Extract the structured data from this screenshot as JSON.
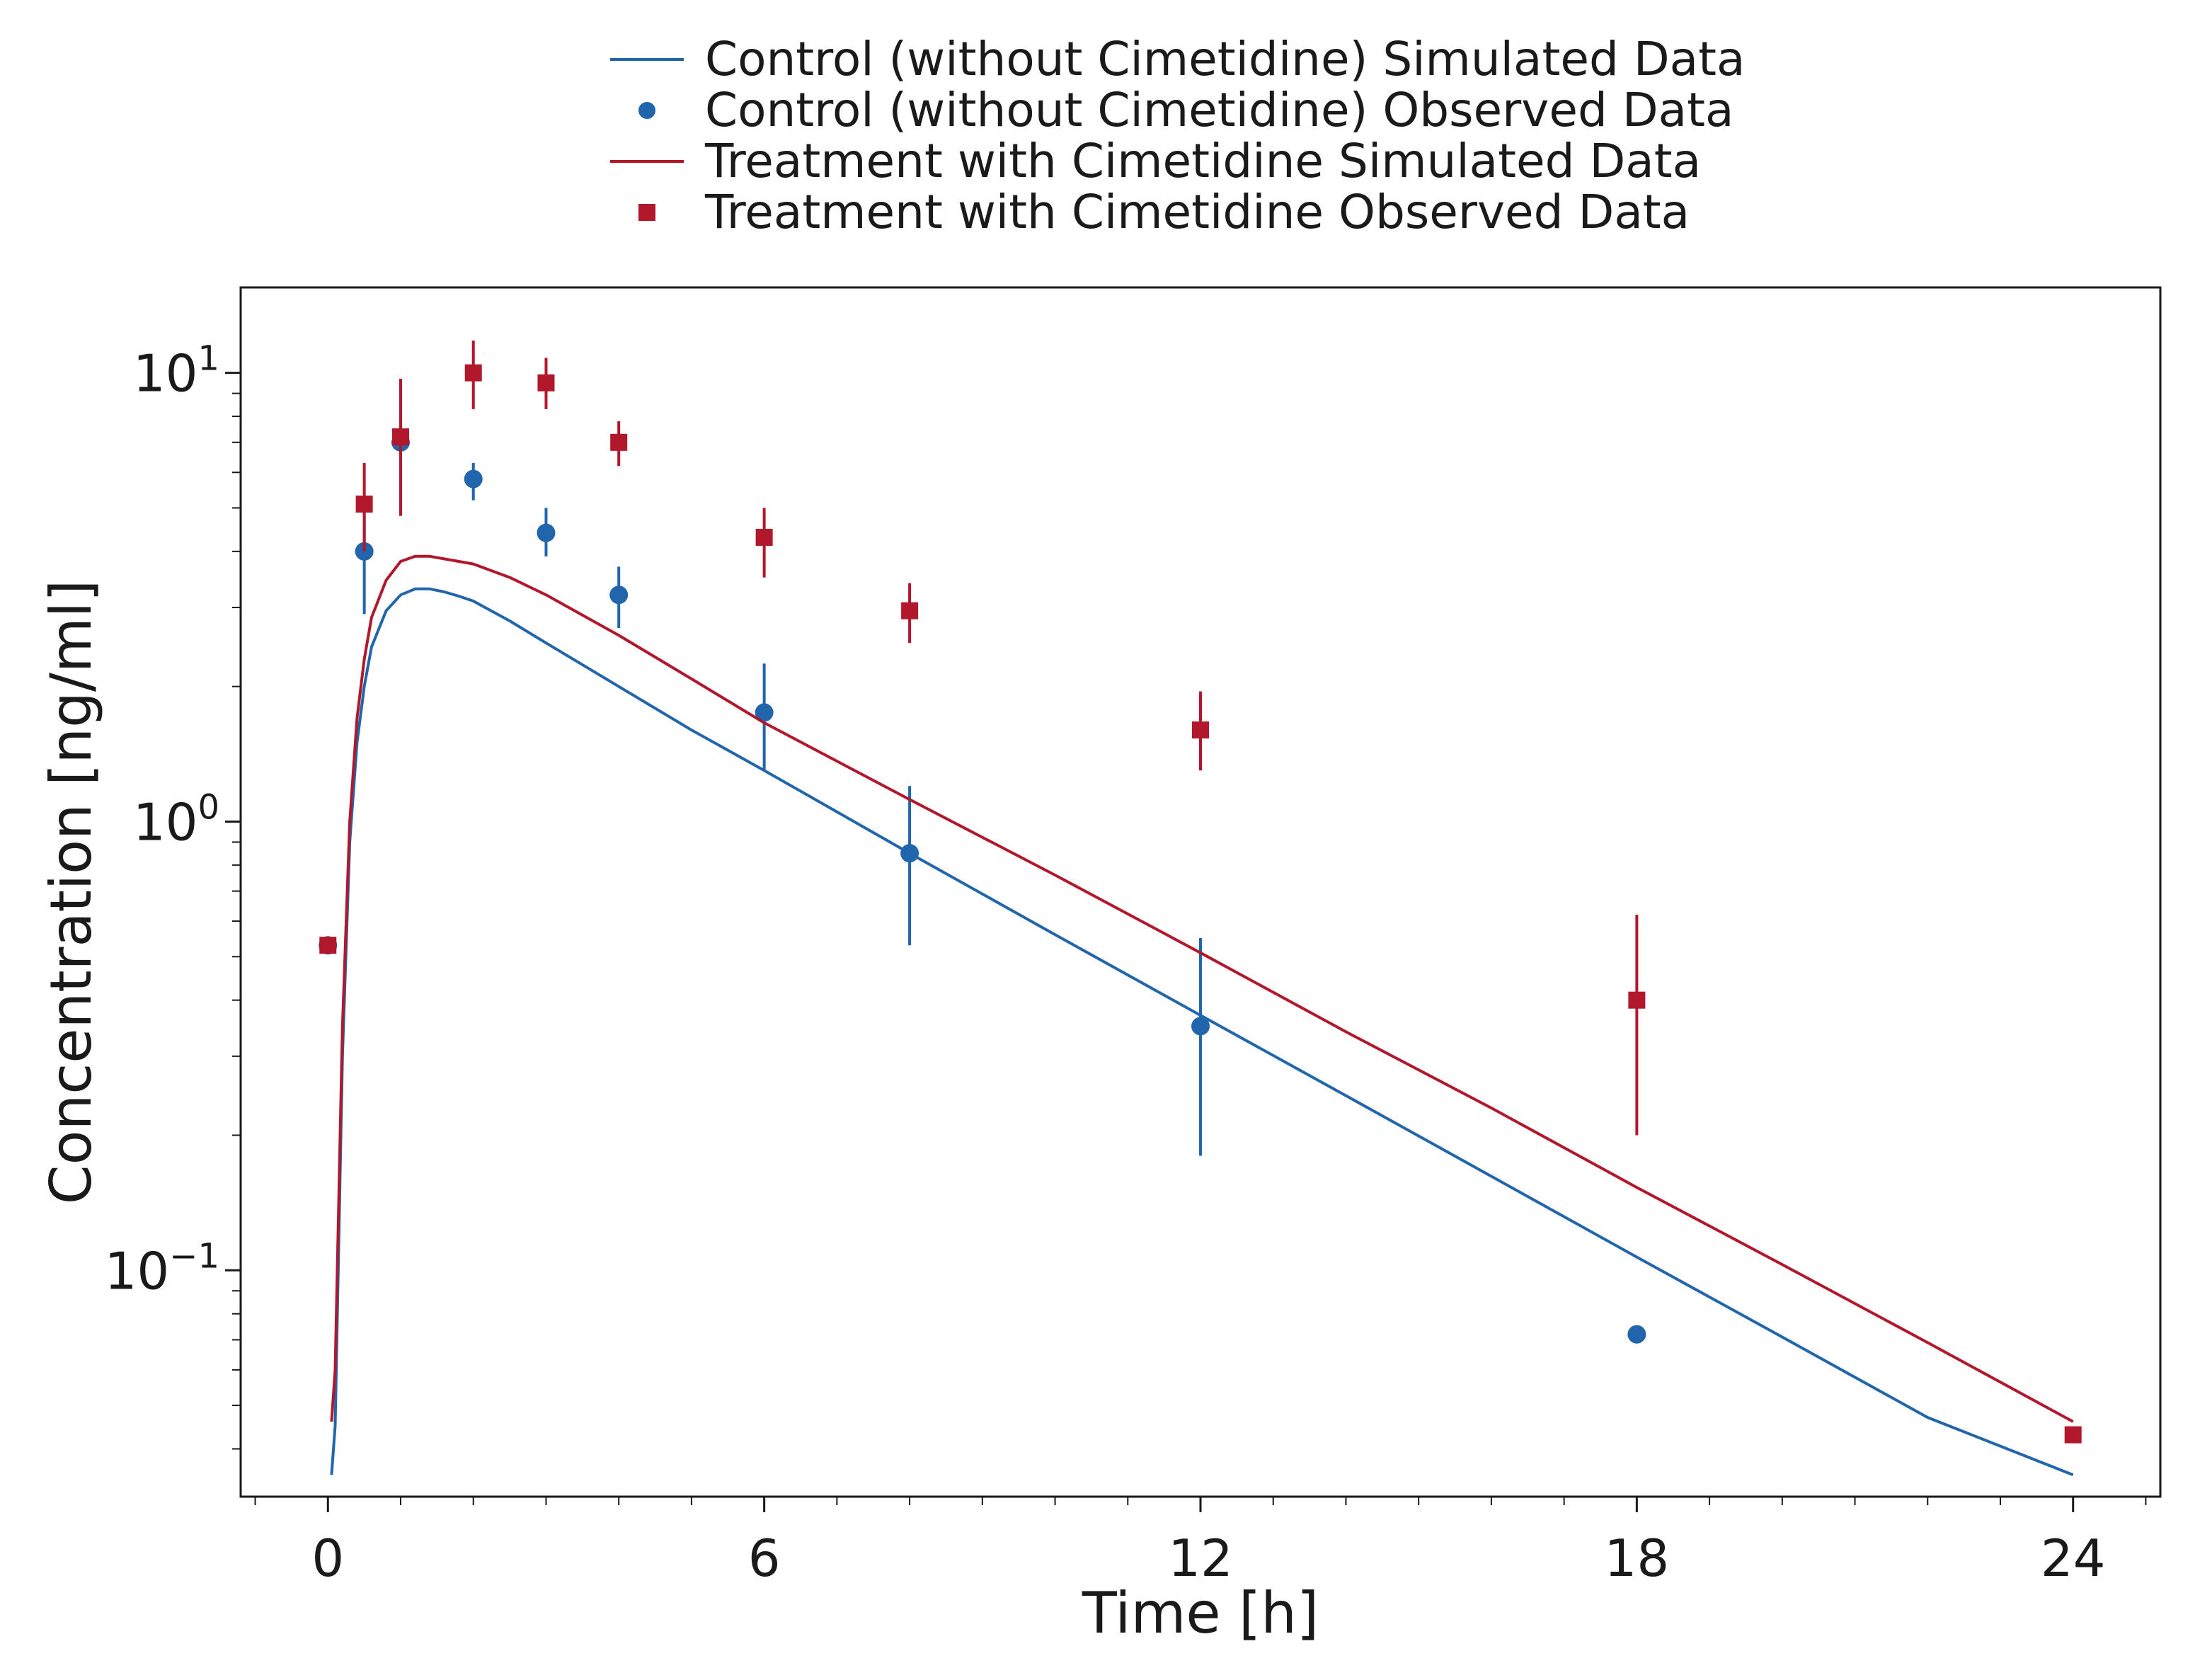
{
  "colors": {
    "control": "#2166ac",
    "treatment": "#b2182b",
    "axis": "#1a1a1a"
  },
  "legend": {
    "control_sim": "Control (without Cimetidine) Simulated Data",
    "control_obs": "Control (without Cimetidine) Observed Data",
    "treatment_sim": "Treatment with Cimetidine Simulated Data",
    "treatment_obs": "Treatment with Cimetidine Observed Data"
  },
  "chart_data": {
    "type": "line",
    "xlabel": "Time [h]",
    "ylabel": "Concentration [ng/ml]",
    "y_scale": "log",
    "xlim": [
      -1.2,
      25.2
    ],
    "ylim": [
      0.0313,
      15.5
    ],
    "grid": false,
    "legend_position": "top-center, above plot",
    "x_ticks": [
      0,
      6,
      12,
      18,
      24
    ],
    "x_minor_step": 1,
    "y_ticks": [
      {
        "value": 0.1,
        "base": "10",
        "exp": "−1"
      },
      {
        "value": 1,
        "base": "10",
        "exp": "0"
      },
      {
        "value": 10,
        "base": "10",
        "exp": "1"
      }
    ],
    "series": [
      {
        "name": "Control (without Cimetidine) Simulated Data",
        "kind": "line",
        "color_key": "control",
        "x": [
          0.05,
          0.1,
          0.2,
          0.3,
          0.4,
          0.5,
          0.6,
          0.8,
          1.0,
          1.2,
          1.4,
          1.6,
          1.8,
          2.0,
          2.5,
          3.0,
          4.0,
          5.0,
          6.0,
          8.0,
          10.0,
          12.0,
          14.0,
          16.0,
          18.0,
          20.0,
          22.0,
          24.0
        ],
        "y": [
          0.035,
          0.045,
          0.3,
          0.9,
          1.5,
          2.0,
          2.45,
          2.95,
          3.2,
          3.3,
          3.3,
          3.25,
          3.18,
          3.1,
          2.8,
          2.5,
          2.0,
          1.6,
          1.3,
          0.85,
          0.56,
          0.37,
          0.245,
          0.162,
          0.107,
          0.071,
          0.047,
          0.035
        ]
      },
      {
        "name": "Control (without Cimetidine) Observed Data",
        "kind": "scatter",
        "marker": "circle",
        "color_key": "control",
        "x": [
          0,
          0.5,
          1,
          2,
          3,
          4,
          6,
          8,
          12,
          18
        ],
        "y": [
          0.53,
          4.0,
          7.0,
          5.8,
          4.4,
          3.2,
          1.75,
          0.85,
          0.35,
          0.072
        ],
        "err_low": [
          null,
          2.9,
          null,
          5.2,
          3.9,
          2.7,
          1.3,
          0.53,
          0.18,
          null
        ],
        "err_high": [
          null,
          5.1,
          null,
          6.3,
          5.0,
          3.7,
          2.25,
          1.2,
          0.55,
          null
        ]
      },
      {
        "name": "Treatment with Cimetidine Simulated Data",
        "kind": "line",
        "color_key": "treatment",
        "x": [
          0.05,
          0.1,
          0.2,
          0.3,
          0.4,
          0.5,
          0.6,
          0.8,
          1.0,
          1.2,
          1.4,
          1.6,
          1.8,
          2.0,
          2.5,
          3.0,
          4.0,
          5.0,
          6.0,
          8.0,
          10.0,
          12.0,
          14.0,
          16.0,
          18.0,
          20.0,
          22.0,
          24.0
        ],
        "y": [
          0.046,
          0.06,
          0.35,
          1.0,
          1.7,
          2.3,
          2.85,
          3.45,
          3.8,
          3.9,
          3.9,
          3.85,
          3.8,
          3.75,
          3.5,
          3.2,
          2.6,
          2.08,
          1.66,
          1.12,
          0.76,
          0.51,
          0.34,
          0.23,
          0.153,
          0.103,
          0.069,
          0.046
        ]
      },
      {
        "name": "Treatment with Cimetidine Observed Data",
        "kind": "scatter",
        "marker": "square",
        "color_key": "treatment",
        "x": [
          0,
          0.5,
          1,
          2,
          3,
          4,
          6,
          8,
          12,
          18,
          24
        ],
        "y": [
          0.53,
          5.1,
          7.2,
          10.0,
          9.5,
          7.0,
          4.3,
          2.95,
          1.6,
          0.4,
          0.043
        ],
        "err_low": [
          null,
          4.0,
          4.8,
          8.3,
          8.3,
          6.2,
          3.5,
          2.5,
          1.3,
          0.2,
          null
        ],
        "err_high": [
          null,
          6.3,
          9.7,
          11.8,
          10.8,
          7.8,
          5.0,
          3.4,
          1.95,
          0.62,
          null
        ]
      }
    ]
  }
}
